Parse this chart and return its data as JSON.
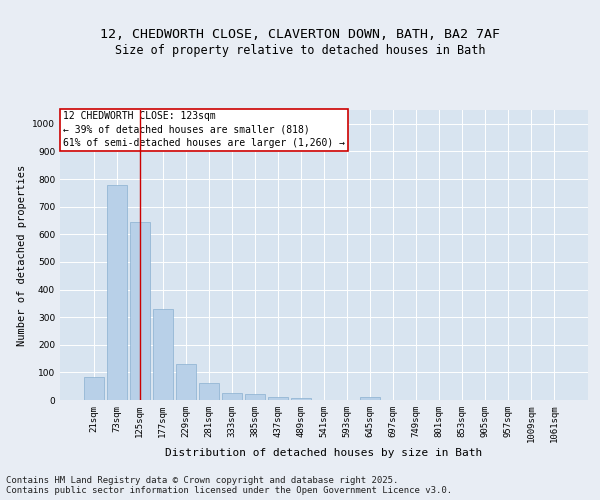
{
  "title_line1": "12, CHEDWORTH CLOSE, CLAVERTON DOWN, BATH, BA2 7AF",
  "title_line2": "Size of property relative to detached houses in Bath",
  "xlabel": "Distribution of detached houses by size in Bath",
  "ylabel": "Number of detached properties",
  "bar_color": "#b8d0e8",
  "bar_edge_color": "#8ab0d0",
  "annotation_box_text": "12 CHEDWORTH CLOSE: 123sqm\n← 39% of detached houses are smaller (818)\n61% of semi-detached houses are larger (1,260) →",
  "categories": [
    "21sqm",
    "73sqm",
    "125sqm",
    "177sqm",
    "229sqm",
    "281sqm",
    "333sqm",
    "385sqm",
    "437sqm",
    "489sqm",
    "541sqm",
    "593sqm",
    "645sqm",
    "697sqm",
    "749sqm",
    "801sqm",
    "853sqm",
    "905sqm",
    "957sqm",
    "1009sqm",
    "1061sqm"
  ],
  "values": [
    85,
    780,
    645,
    330,
    130,
    60,
    25,
    20,
    12,
    6,
    0,
    0,
    10,
    0,
    0,
    0,
    0,
    0,
    0,
    0,
    0
  ],
  "ylim": [
    0,
    1050
  ],
  "yticks": [
    0,
    100,
    200,
    300,
    400,
    500,
    600,
    700,
    800,
    900,
    1000
  ],
  "footer": "Contains HM Land Registry data © Crown copyright and database right 2025.\nContains public sector information licensed under the Open Government Licence v3.0.",
  "bg_color": "#e8edf4",
  "plot_bg_color": "#d8e4f0",
  "annotation_line_color": "#cc0000",
  "annotation_box_edge_color": "#cc0000",
  "title_fontsize": 9.5,
  "subtitle_fontsize": 8.5,
  "footer_fontsize": 6.5,
  "tick_fontsize": 6.5,
  "ylabel_fontsize": 7.5,
  "xlabel_fontsize": 8
}
